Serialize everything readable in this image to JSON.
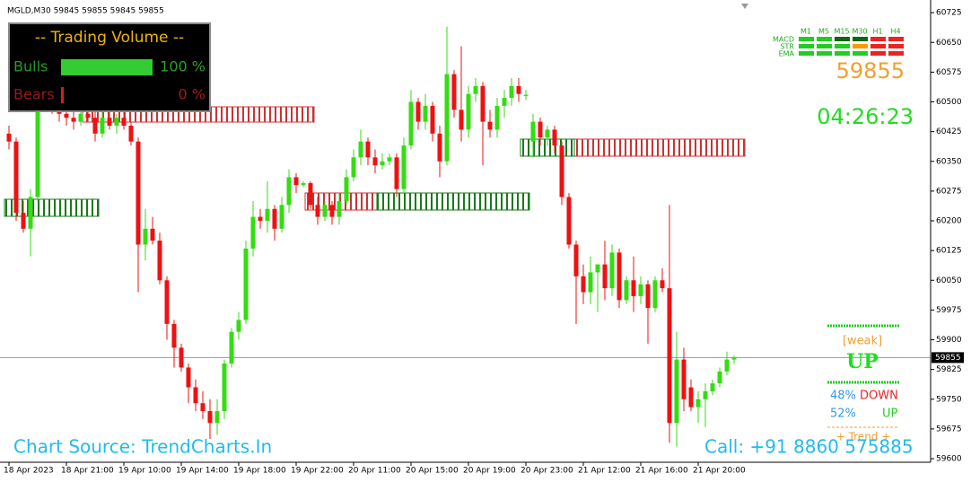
{
  "chart_data": {
    "type": "candlestick",
    "symbol_header": "MGLD,M30  59845 59855 59845 59855",
    "up_color": "#33dd11",
    "down_color": "#ee1111",
    "ylim": [
      59591,
      60757
    ],
    "yticks": [
      59600,
      59675,
      59750,
      59825,
      59900,
      59975,
      60050,
      60125,
      60200,
      60275,
      60350,
      60425,
      60500,
      60575,
      60650,
      60725
    ],
    "last_price": 59855,
    "categories": [
      "18 Apr 2023",
      "18 Apr 21:00",
      "19 Apr 10:00",
      "19 Apr 14:00",
      "19 Apr 18:00",
      "19 Apr 22:00",
      "20 Apr 11:00",
      "20 Apr 15:00",
      "20 Apr 19:00",
      "20 Apr 23:00",
      "21 Apr 12:00",
      "21 Apr 16:00",
      "21 Apr 20:00"
    ],
    "ohlc": [
      [
        60420,
        60440,
        60380,
        60400
      ],
      [
        60400,
        60410,
        60200,
        60220
      ],
      [
        60220,
        60250,
        60170,
        60180
      ],
      [
        60180,
        60280,
        60110,
        60260
      ],
      [
        60260,
        60560,
        60250,
        60540
      ],
      [
        60540,
        60580,
        60480,
        60500
      ],
      [
        60500,
        60530,
        60470,
        60480
      ],
      [
        60480,
        60510,
        60450,
        60470
      ],
      [
        60470,
        60500,
        60440,
        60460
      ],
      [
        60460,
        60490,
        60430,
        60450
      ],
      [
        60450,
        60480,
        60440,
        60470
      ],
      [
        60470,
        60500,
        60450,
        60460
      ],
      [
        60460,
        60480,
        60400,
        60420
      ],
      [
        60420,
        60480,
        60410,
        60460
      ],
      [
        60460,
        60490,
        60430,
        60440
      ],
      [
        60440,
        60470,
        60420,
        60460
      ],
      [
        60460,
        60480,
        60430,
        60440
      ],
      [
        60440,
        60450,
        60390,
        60400
      ],
      [
        60400,
        60410,
        60020,
        60140
      ],
      [
        60140,
        60230,
        60100,
        60180
      ],
      [
        60180,
        60210,
        60140,
        60150
      ],
      [
        60150,
        60170,
        60040,
        60050
      ],
      [
        60050,
        60060,
        59900,
        59940
      ],
      [
        59940,
        59950,
        59830,
        59880
      ],
      [
        59880,
        59890,
        59820,
        59830
      ],
      [
        59830,
        59840,
        59740,
        59780
      ],
      [
        59780,
        59800,
        59720,
        59740
      ],
      [
        59740,
        59770,
        59700,
        59720
      ],
      [
        59720,
        59750,
        59650,
        59690
      ],
      [
        59690,
        59750,
        59660,
        59720
      ],
      [
        59720,
        59850,
        59700,
        59840
      ],
      [
        59840,
        59930,
        59830,
        59920
      ],
      [
        59920,
        59970,
        59900,
        59950
      ],
      [
        59950,
        60150,
        59940,
        60130
      ],
      [
        60130,
        60250,
        60110,
        60210
      ],
      [
        60210,
        60230,
        60180,
        60200
      ],
      [
        60200,
        60300,
        60170,
        60230
      ],
      [
        60230,
        60240,
        60150,
        60180
      ],
      [
        60180,
        60260,
        60170,
        60240
      ],
      [
        60240,
        60330,
        60220,
        60310
      ],
      [
        60310,
        60320,
        60270,
        60290
      ],
      [
        60290,
        60300,
        60285,
        60295
      ],
      [
        60295,
        60300,
        60230,
        60240
      ],
      [
        60240,
        60260,
        60190,
        60210
      ],
      [
        60210,
        60250,
        60200,
        60240
      ],
      [
        60240,
        60250,
        60190,
        60210
      ],
      [
        60210,
        60270,
        60190,
        60250
      ],
      [
        60250,
        60330,
        60240,
        60310
      ],
      [
        60310,
        60380,
        60300,
        60360
      ],
      [
        60360,
        60430,
        60340,
        60400
      ],
      [
        60400,
        60410,
        60340,
        60360
      ],
      [
        60360,
        60380,
        60320,
        60340
      ],
      [
        60340,
        60370,
        60330,
        60350
      ],
      [
        60350,
        60370,
        60340,
        60360
      ],
      [
        60360,
        60370,
        60260,
        60280
      ],
      [
        60280,
        60410,
        60270,
        60390
      ],
      [
        60390,
        60530,
        60380,
        60500
      ],
      [
        60500,
        60510,
        60430,
        60450
      ],
      [
        60450,
        60520,
        60430,
        60490
      ],
      [
        60490,
        60500,
        60400,
        60420
      ],
      [
        60420,
        60440,
        60310,
        60350
      ],
      [
        60350,
        60690,
        60340,
        60570
      ],
      [
        60570,
        60580,
        60460,
        60480
      ],
      [
        60480,
        60640,
        60400,
        60430
      ],
      [
        60430,
        60540,
        60410,
        60520
      ],
      [
        60520,
        60560,
        60500,
        60540
      ],
      [
        60540,
        60550,
        60340,
        60450
      ],
      [
        60450,
        60480,
        60410,
        60430
      ],
      [
        60430,
        60510,
        60410,
        60490
      ],
      [
        60490,
        60530,
        60460,
        60510
      ],
      [
        60510,
        60560,
        60490,
        60540
      ],
      [
        60540,
        60560,
        60500,
        60520
      ],
      [
        60515,
        60530,
        60505,
        60518
      ],
      [
        60400,
        60470,
        60360,
        60450
      ],
      [
        60450,
        60460,
        60390,
        60410
      ],
      [
        60410,
        60440,
        60390,
        60430
      ],
      [
        60430,
        60440,
        60370,
        60390
      ],
      [
        60390,
        60400,
        60240,
        60260
      ],
      [
        60260,
        60270,
        60130,
        60140
      ],
      [
        60140,
        60150,
        59940,
        60060
      ],
      [
        60060,
        60090,
        59990,
        60020
      ],
      [
        60020,
        60110,
        59990,
        60070
      ],
      [
        60070,
        60090,
        59970,
        60090
      ],
      [
        60090,
        60150,
        60000,
        60030
      ],
      [
        60030,
        60140,
        60010,
        60120
      ],
      [
        60120,
        60130,
        59980,
        60000
      ],
      [
        60000,
        60060,
        59990,
        60050
      ],
      [
        60050,
        60110,
        59970,
        60010
      ],
      [
        60010,
        60060,
        59990,
        60040
      ],
      [
        60040,
        60050,
        59890,
        59980
      ],
      [
        59980,
        60060,
        59970,
        60050
      ],
      [
        60050,
        60080,
        60020,
        60030
      ],
      [
        60030,
        60240,
        59640,
        59690
      ],
      [
        59690,
        59920,
        59630,
        59850
      ],
      [
        59850,
        59880,
        59720,
        59750
      ],
      [
        59780,
        59800,
        59720,
        59730
      ],
      [
        59730,
        59770,
        59690,
        59750
      ],
      [
        59750,
        59790,
        59680,
        59770
      ],
      [
        59770,
        59800,
        59760,
        59790
      ],
      [
        59790,
        59830,
        59780,
        59820
      ],
      [
        59820,
        59870,
        59810,
        59850
      ],
      [
        59850,
        59860,
        59840,
        59855
      ]
    ]
  },
  "volume_panel": {
    "title": "-- Trading Volume --",
    "rows": [
      {
        "name": "Bulls",
        "value": 100,
        "value_label": "100 %",
        "color": "#33cc33"
      },
      {
        "name": "Bears",
        "value": 0,
        "value_label": "0 %",
        "color": "#cc2222"
      }
    ]
  },
  "signals": {
    "timeframes": [
      "M1",
      "M5",
      "M15",
      "M30",
      "H1",
      "H4"
    ],
    "indicators": [
      {
        "name": "MACD",
        "colors": [
          "#22cc22",
          "#22cc22",
          "#116611",
          "#116611",
          "#ee2222",
          "#ee2222"
        ]
      },
      {
        "name": "STR",
        "colors": [
          "#22cc22",
          "#22cc22",
          "#22cc22",
          "#ff9900",
          "#ee2222",
          "#ee2222"
        ]
      },
      {
        "name": "EMA",
        "colors": [
          "#22cc22",
          "#22cc22",
          "#22cc22",
          "#22cc22",
          "#ee2222",
          "#ee2222"
        ]
      }
    ],
    "clock": "04:26:23",
    "strength": "[weak]",
    "direction": "UP",
    "down_pct": "48%",
    "down_label": "DOWN",
    "up_pct": "52%",
    "up_label": "UP",
    "trend": "+   Trend   +"
  },
  "footer": {
    "source": "Chart Source: TrendCharts.In",
    "contact": "Call: +91 8860 575885"
  }
}
